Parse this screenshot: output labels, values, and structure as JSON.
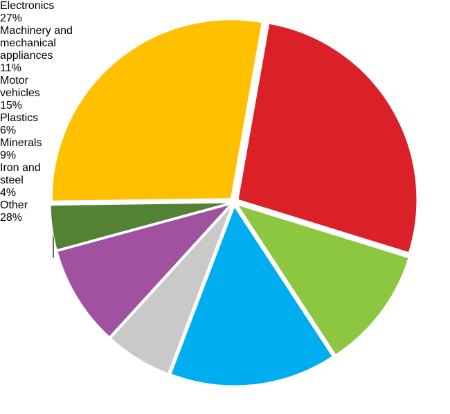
{
  "chart_data": {
    "type": "pie",
    "categories": [
      "Electronics",
      "Machinery and mechanical appliances",
      "Motor vehicles",
      "Plastics",
      "Minerals",
      "Iron and steel",
      "Other"
    ],
    "values": [
      27,
      11,
      15,
      6,
      9,
      4,
      28
    ],
    "value_labels": [
      "27%",
      "11%",
      "15%",
      "6%",
      "9%",
      "4%",
      "28%"
    ],
    "colors": [
      "#da2128",
      "#8dc63f",
      "#00aeef",
      "#c9c9c9",
      "#a052a0",
      "#548235",
      "#ffc000"
    ]
  }
}
